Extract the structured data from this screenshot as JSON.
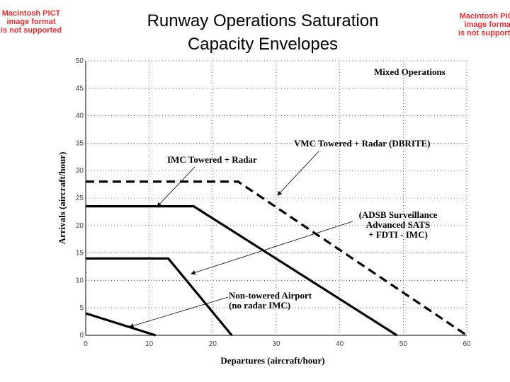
{
  "chart_data": {
    "type": "line",
    "title_lines": [
      "Runway Operations Saturation",
      "Capacity Envelopes"
    ],
    "xlabel": "Departures (aircraft/hour)",
    "ylabel": "Arrivals (aircraft/hour)",
    "xlim": [
      0,
      60
    ],
    "xticks": [
      0,
      10,
      20,
      30,
      40,
      50,
      60
    ],
    "ylim": [
      0,
      50
    ],
    "yticks": [
      0,
      5,
      10,
      15,
      20,
      25,
      30,
      35,
      40,
      45,
      50
    ],
    "grid": true,
    "series": [
      {
        "color": "#000000",
        "dashed": true,
        "x": [
          0,
          24,
          60
        ],
        "values": [
          28,
          28,
          0
        ]
      },
      {
        "color": "#000000",
        "dashed": false,
        "x": [
          0,
          17,
          49
        ],
        "values": [
          23.5,
          23.5,
          0
        ]
      },
      {
        "color": "#000000",
        "dashed": false,
        "x": [
          0,
          13,
          23
        ],
        "values": [
          14,
          14,
          0
        ]
      },
      {
        "color": "#000000",
        "dashed": false,
        "x": [
          0,
          11
        ],
        "values": [
          4,
          0
        ]
      }
    ],
    "annotations": [
      {
        "lines": [
          "Mixed Operations"
        ]
      },
      {
        "lines": [
          "VMC Towered + Radar (DBRITE)"
        ]
      },
      {
        "lines": [
          "IMC Towered + Radar"
        ]
      },
      {
        "lines": [
          "(ADSB Surveillance",
          "Advanced SATS",
          "+ FDTI - IMC)"
        ]
      },
      {
        "lines": [
          "Non-towered Airport",
          "(no radar IMC)"
        ]
      }
    ]
  },
  "image_placeholders": [
    [
      "Macintosh PICT",
      "image format",
      "is not supported"
    ],
    [
      "Macintosh PICT",
      "image format",
      "is not supported"
    ]
  ]
}
